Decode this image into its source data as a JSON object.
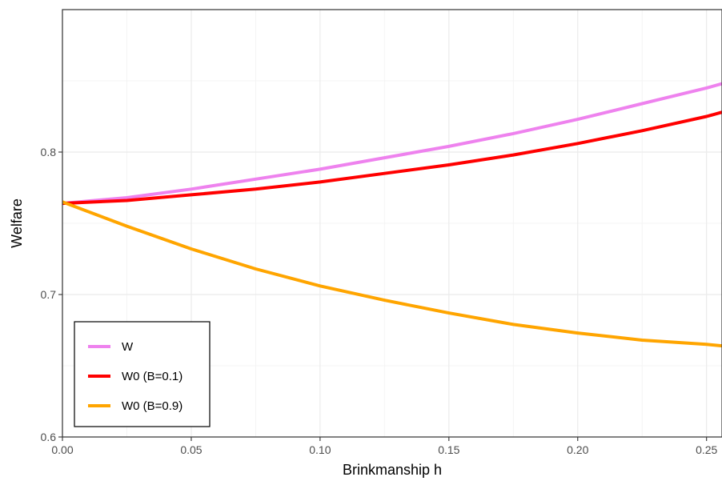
{
  "chart_data": {
    "type": "line",
    "xlabel": "Brinkmanship h",
    "ylabel": "Welfare",
    "xlim": [
      0,
      0.256
    ],
    "ylim": [
      0.6,
      0.9
    ],
    "x_ticks": [
      0.0,
      0.05,
      0.1,
      0.15,
      0.2,
      0.25
    ],
    "x_tick_labels": [
      "0.00",
      "0.05",
      "0.10",
      "0.15",
      "0.20",
      "0.25"
    ],
    "y_ticks": [
      0.6,
      0.7,
      0.8
    ],
    "y_tick_labels": [
      "0.6",
      "0.7",
      "0.8"
    ],
    "grid": true,
    "legend_position": "bottom-left",
    "x": [
      0.0,
      0.025,
      0.05,
      0.075,
      0.1,
      0.125,
      0.15,
      0.175,
      0.2,
      0.225,
      0.25,
      0.256
    ],
    "series": [
      {
        "name": "W",
        "color": "#EE82EE",
        "values": [
          0.764,
          0.768,
          0.774,
          0.781,
          0.788,
          0.796,
          0.804,
          0.813,
          0.823,
          0.834,
          0.845,
          0.848
        ]
      },
      {
        "name": "W0 (B=0.1)",
        "color": "#FF0000",
        "values": [
          0.764,
          0.766,
          0.77,
          0.774,
          0.779,
          0.785,
          0.791,
          0.798,
          0.806,
          0.815,
          0.825,
          0.828
        ]
      },
      {
        "name": "W0 (B=0.9)",
        "color": "#FFA500",
        "values": [
          0.765,
          0.748,
          0.732,
          0.718,
          0.706,
          0.696,
          0.687,
          0.679,
          0.673,
          0.668,
          0.665,
          0.664
        ]
      }
    ]
  }
}
